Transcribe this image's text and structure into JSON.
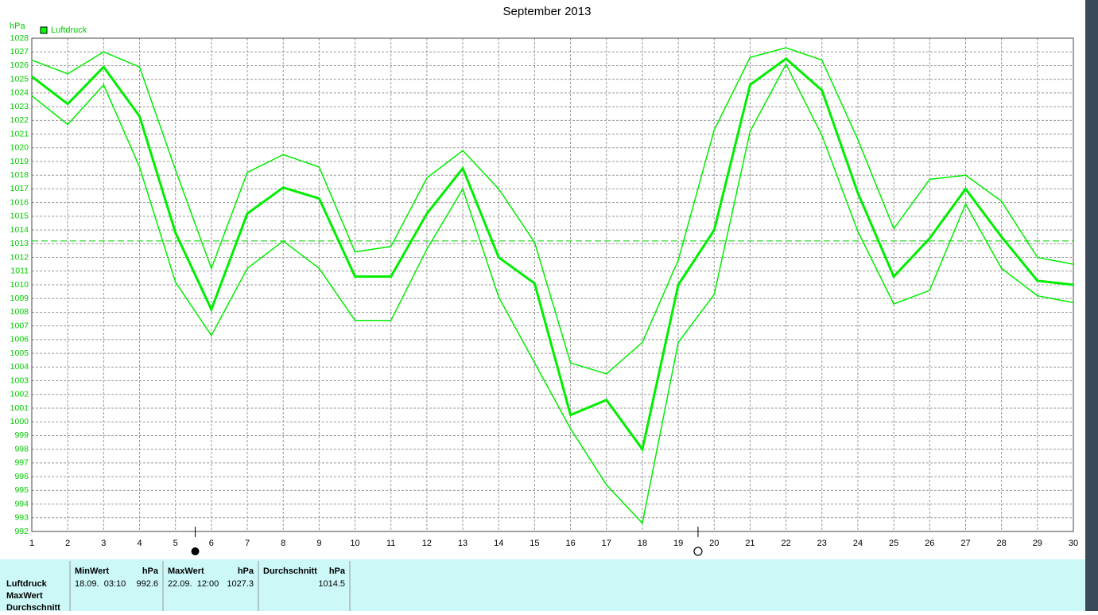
{
  "chart_data": {
    "type": "line",
    "title": "September 2013",
    "y_unit": "hPa",
    "legend": {
      "label": "Luftdruck",
      "color": "#00ff00"
    },
    "x": [
      1,
      2,
      3,
      4,
      5,
      6,
      7,
      8,
      9,
      10,
      11,
      12,
      13,
      14,
      15,
      16,
      17,
      18,
      19,
      20,
      21,
      22,
      23,
      24,
      25,
      26,
      27,
      28,
      29,
      30
    ],
    "xlim": [
      1,
      30
    ],
    "xticks": [
      1,
      2,
      3,
      4,
      5,
      6,
      7,
      8,
      9,
      10,
      11,
      12,
      13,
      14,
      15,
      16,
      17,
      18,
      19,
      20,
      21,
      22,
      23,
      24,
      25,
      26,
      27,
      28,
      29,
      30
    ],
    "ylim": [
      992,
      1028
    ],
    "yticks": [
      992,
      993,
      994,
      995,
      996,
      997,
      998,
      999,
      1000,
      1001,
      1002,
      1003,
      1004,
      1005,
      1006,
      1007,
      1008,
      1009,
      1010,
      1011,
      1012,
      1013,
      1014,
      1015,
      1016,
      1017,
      1018,
      1019,
      1020,
      1021,
      1022,
      1023,
      1024,
      1025,
      1026,
      1027,
      1028
    ],
    "grid": true,
    "reference_line": 1013.2,
    "new_moon_x": 5.55,
    "full_moon_x": 19.55,
    "series": [
      {
        "color": "#00ee00",
        "width": 1.5,
        "values": [
          1026.4,
          1025.4,
          1027.0,
          1025.9,
          1018.4,
          1011.2,
          1018.2,
          1019.5,
          1018.6,
          1012.4,
          1012.8,
          1017.8,
          1019.8,
          1017.0,
          1013.1,
          1004.3,
          1003.5,
          1005.8,
          1011.8,
          1021.3,
          1026.6,
          1027.3,
          1026.4,
          1020.6,
          1014.1,
          1017.7,
          1018.0,
          1016.1,
          1012.0,
          1011.5
        ]
      },
      {
        "color": "#00ee00",
        "width": 3,
        "values": [
          1025.2,
          1023.2,
          1025.9,
          1022.3,
          1013.8,
          1008.2,
          1015.2,
          1017.1,
          1016.3,
          1010.6,
          1010.6,
          1015.2,
          1018.5,
          1012.0,
          1010.1,
          1000.5,
          1001.6,
          998.0,
          1010.0,
          1014.0,
          1024.6,
          1026.5,
          1024.2,
          1016.7,
          1010.6,
          1013.4,
          1017.0,
          1013.5,
          1010.3,
          1010.0
        ]
      },
      {
        "color": "#00ee00",
        "width": 1.5,
        "values": [
          1023.8,
          1021.7,
          1024.6,
          1018.6,
          1010.2,
          1006.3,
          1011.2,
          1013.2,
          1011.2,
          1007.4,
          1007.4,
          1012.6,
          1017.0,
          1009.1,
          1004.3,
          999.5,
          995.4,
          992.6,
          1005.8,
          1009.3,
          1021.2,
          1026.1,
          1020.9,
          1013.9,
          1008.6,
          1009.6,
          1015.9,
          1011.2,
          1009.2,
          1008.7
        ]
      }
    ]
  },
  "stats_table": {
    "row_labels": [
      "Luftdruck",
      "MaxWert",
      "Durchschnitt"
    ],
    "columns": [
      {
        "header": "MinWert",
        "unit": "hPa",
        "time": "18.09.  03:10",
        "value": "992.6"
      },
      {
        "header": "MaxWert",
        "unit": "hPa",
        "time": "22.09.  12:00",
        "value": "1027.3"
      },
      {
        "header": "Durchschnitt",
        "unit": "hPa",
        "time": "",
        "value": "1014.5"
      }
    ]
  }
}
